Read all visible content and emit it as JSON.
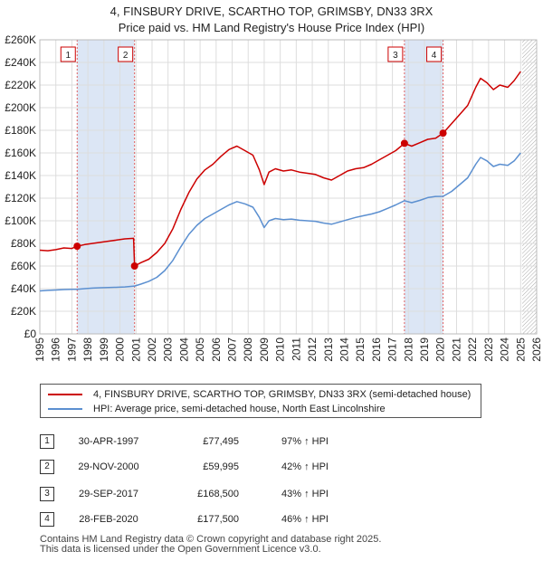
{
  "colors": {
    "property": "#cc0000",
    "hpi": "#5b8fd0",
    "shade": "#dce6f5",
    "marker_line": "#e06060",
    "grid": "#dddddd"
  },
  "title": {
    "line1": "4, FINSBURY DRIVE, SCARTHO TOP, GRIMSBY, DN33 3RX",
    "line2": "Price paid vs. HM Land Registry's House Price Index (HPI)"
  },
  "legend": {
    "property_label": "4, FINSBURY DRIVE, SCARTHO TOP, GRIMSBY, DN33 3RX (semi-detached house)",
    "hpi_label": "HPI: Average price, semi-detached house, North East Lincolnshire"
  },
  "transactions": [
    {
      "num": "1",
      "date": "30-APR-1997",
      "price": "£77,495",
      "hpi": "97% ↑ HPI"
    },
    {
      "num": "2",
      "date": "29-NOV-2000",
      "price": "£59,995",
      "hpi": "42% ↑ HPI"
    },
    {
      "num": "3",
      "date": "29-SEP-2017",
      "price": "£168,500",
      "hpi": "43% ↑ HPI"
    },
    {
      "num": "4",
      "date": "28-FEB-2020",
      "price": "£177,500",
      "hpi": "46% ↑ HPI"
    }
  ],
  "footer": {
    "line1": "Contains HM Land Registry data © Crown copyright and database right 2025.",
    "line2": "This data is licensed under the Open Government Licence v3.0."
  },
  "chart_data": {
    "type": "line",
    "title": "4, FINSBURY DRIVE, SCARTHO TOP, GRIMSBY, DN33 3RX — Price paid vs. HM Land Registry's House Price Index (HPI)",
    "xlabel": "",
    "ylabel": "",
    "xlim": [
      1995,
      2026
    ],
    "ylim": [
      0,
      260000
    ],
    "x_ticks": [
      1995,
      1996,
      1997,
      1998,
      1999,
      2000,
      2001,
      2002,
      2003,
      2004,
      2005,
      2006,
      2007,
      2008,
      2009,
      2010,
      2011,
      2012,
      2013,
      2014,
      2015,
      2016,
      2017,
      2018,
      2019,
      2020,
      2021,
      2022,
      2023,
      2024,
      2025,
      2026
    ],
    "y_ticks": [
      0,
      20000,
      40000,
      60000,
      80000,
      100000,
      120000,
      140000,
      160000,
      180000,
      200000,
      220000,
      240000,
      260000
    ],
    "y_tick_labels": [
      "£0",
      "£20K",
      "£40K",
      "£60K",
      "£80K",
      "£100K",
      "£120K",
      "£140K",
      "£160K",
      "£180K",
      "£200K",
      "£220K",
      "£240K",
      "£260K"
    ],
    "grid": true,
    "shaded_ranges": [
      [
        1997.33,
        2000.91
      ],
      [
        2017.75,
        2020.16
      ]
    ],
    "hatched_from": 2025.1,
    "series": [
      {
        "name": "4, FINSBURY DRIVE, SCARTHO TOP, GRIMSBY, DN33 3RX (semi-detached house)",
        "color": "#cc0000",
        "x": [
          1995.0,
          1995.5,
          1996.0,
          1996.5,
          1997.0,
          1997.33,
          1997.8,
          1998.3,
          1998.8,
          1999.3,
          1999.8,
          2000.3,
          2000.85,
          2000.91,
          2001.3,
          2001.8,
          2002.3,
          2002.8,
          2003.3,
          2003.8,
          2004.3,
          2004.8,
          2005.3,
          2005.8,
          2006.3,
          2006.8,
          2007.3,
          2007.8,
          2008.3,
          2008.7,
          2009.0,
          2009.3,
          2009.7,
          2010.2,
          2010.7,
          2011.2,
          2011.7,
          2012.2,
          2012.7,
          2013.2,
          2013.7,
          2014.2,
          2014.7,
          2015.2,
          2015.7,
          2016.2,
          2016.7,
          2017.2,
          2017.75,
          2018.2,
          2018.7,
          2019.2,
          2019.7,
          2020.16,
          2020.7,
          2021.2,
          2021.7,
          2022.2,
          2022.5,
          2022.9,
          2023.3,
          2023.7,
          2024.2,
          2024.6,
          2025.0
        ],
        "y": [
          74000,
          73500,
          74500,
          76000,
          75500,
          77495,
          79000,
          80000,
          81000,
          82000,
          83000,
          84000,
          84500,
          59995,
          63000,
          66000,
          72000,
          80000,
          93000,
          110000,
          125000,
          137000,
          145000,
          150000,
          157000,
          163000,
          166000,
          162000,
          158000,
          145000,
          132000,
          143000,
          146000,
          144000,
          145000,
          143000,
          142000,
          141000,
          138000,
          136000,
          140000,
          144000,
          146000,
          147000,
          150000,
          154000,
          158000,
          162000,
          168500,
          166000,
          169000,
          172000,
          173000,
          177500,
          186000,
          194000,
          202000,
          218000,
          226000,
          222000,
          216000,
          220000,
          218000,
          224000,
          232000
        ]
      },
      {
        "name": "HPI: Average price, semi-detached house, North East Lincolnshire",
        "color": "#5b8fd0",
        "x": [
          1995.0,
          1995.5,
          1996.0,
          1996.5,
          1997.0,
          1997.33,
          1997.8,
          1998.3,
          1998.8,
          1999.3,
          1999.8,
          2000.3,
          2000.91,
          2001.3,
          2001.8,
          2002.3,
          2002.8,
          2003.3,
          2003.8,
          2004.3,
          2004.8,
          2005.3,
          2005.8,
          2006.3,
          2006.8,
          2007.3,
          2007.8,
          2008.3,
          2008.7,
          2009.0,
          2009.3,
          2009.7,
          2010.2,
          2010.7,
          2011.2,
          2011.7,
          2012.2,
          2012.7,
          2013.2,
          2013.7,
          2014.2,
          2014.7,
          2015.2,
          2015.7,
          2016.2,
          2016.7,
          2017.2,
          2017.75,
          2018.2,
          2018.7,
          2019.2,
          2019.7,
          2020.16,
          2020.7,
          2021.2,
          2021.7,
          2022.2,
          2022.5,
          2022.9,
          2023.3,
          2023.7,
          2024.2,
          2024.6,
          2025.0
        ],
        "y": [
          38000,
          38500,
          38800,
          39200,
          39400,
          39400,
          40000,
          40500,
          40800,
          41000,
          41200,
          41500,
          42300,
          44000,
          46500,
          50000,
          56000,
          65000,
          77000,
          88000,
          96000,
          102000,
          106000,
          110000,
          114000,
          117000,
          115000,
          112000,
          103000,
          94000,
          100000,
          102000,
          101000,
          101500,
          100500,
          100000,
          99500,
          98000,
          97000,
          99000,
          101000,
          103000,
          104500,
          106000,
          108000,
          111000,
          114000,
          117800,
          116000,
          118000,
          120500,
          121500,
          121600,
          126000,
          132000,
          138000,
          150000,
          156000,
          153000,
          148000,
          150000,
          149000,
          153000,
          160000
        ]
      }
    ],
    "markers": [
      {
        "label": "1",
        "x": 1997.33,
        "y": 77495
      },
      {
        "label": "2",
        "x": 2000.91,
        "y": 59995
      },
      {
        "label": "3",
        "x": 2017.75,
        "y": 168500
      },
      {
        "label": "4",
        "x": 2020.16,
        "y": 177500
      }
    ]
  }
}
